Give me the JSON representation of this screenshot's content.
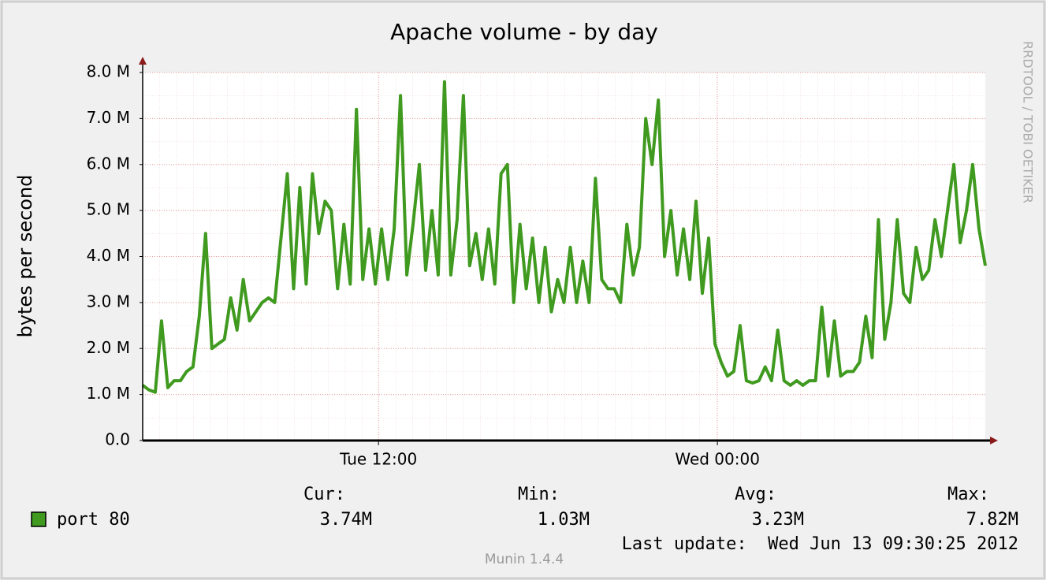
{
  "chart_data": {
    "type": "line",
    "title": "Apache volume - by day",
    "ylabel": "bytes per second",
    "side_text": "RRDTOOL / TOBI OETIKER",
    "ylim": [
      0,
      8
    ],
    "yticks": [
      {
        "value": 0,
        "label": "0.0"
      },
      {
        "value": 1,
        "label": "1.0 M"
      },
      {
        "value": 2,
        "label": "2.0 M"
      },
      {
        "value": 3,
        "label": "3.0 M"
      },
      {
        "value": 4,
        "label": "4.0 M"
      },
      {
        "value": 5,
        "label": "5.0 M"
      },
      {
        "value": 6,
        "label": "6.0 M"
      },
      {
        "value": 7,
        "label": "7.0 M"
      },
      {
        "value": 8,
        "label": "8.0 M"
      }
    ],
    "xlim": [
      0,
      134
    ],
    "xticks": [
      {
        "value": 37.5,
        "label": "Tue 12:00"
      },
      {
        "value": 91.4,
        "label": "Wed 00:00"
      }
    ],
    "grid": true,
    "series": [
      {
        "name": "port 80",
        "color": "#3f9a1f",
        "values": [
          1.2,
          1.1,
          1.05,
          2.6,
          1.15,
          1.3,
          1.3,
          1.5,
          1.6,
          2.7,
          4.5,
          2.0,
          2.1,
          2.2,
          3.1,
          2.4,
          3.5,
          2.6,
          2.8,
          3.0,
          3.1,
          3.0,
          4.4,
          5.8,
          3.3,
          5.5,
          3.4,
          5.8,
          4.5,
          5.2,
          5.0,
          3.3,
          4.7,
          3.4,
          7.2,
          3.5,
          4.6,
          3.4,
          4.6,
          3.5,
          4.6,
          7.5,
          3.6,
          4.7,
          6.0,
          3.7,
          5.0,
          3.6,
          7.8,
          3.6,
          4.8,
          7.5,
          3.8,
          4.5,
          3.5,
          4.6,
          3.4,
          5.8,
          6.0,
          3.0,
          4.7,
          3.3,
          4.4,
          3.0,
          4.2,
          2.8,
          3.5,
          3.0,
          4.2,
          3.0,
          3.9,
          3.0,
          5.7,
          3.5,
          3.3,
          3.3,
          3.0,
          4.7,
          3.6,
          4.2,
          7.0,
          6.0,
          7.4,
          4.0,
          5.0,
          3.6,
          4.6,
          3.5,
          5.2,
          3.2,
          4.4,
          2.1,
          1.7,
          1.4,
          1.5,
          2.5,
          1.3,
          1.25,
          1.3,
          1.6,
          1.3,
          2.4,
          1.3,
          1.2,
          1.3,
          1.2,
          1.3,
          1.3,
          2.9,
          1.4,
          2.6,
          1.4,
          1.5,
          1.5,
          1.7,
          2.7,
          1.8,
          4.8,
          2.2,
          3.0,
          4.8,
          3.2,
          3.0,
          4.2,
          3.5,
          3.7,
          4.8,
          4.0,
          5.0,
          6.0,
          4.3,
          5.0,
          6.0,
          4.6,
          3.8
        ]
      }
    ],
    "legend": {
      "headers": [
        "Cur:",
        "Min:",
        "Avg:",
        "Max:"
      ],
      "values": [
        "3.74M",
        "1.03M",
        "3.23M",
        "7.82M"
      ]
    },
    "last_update": "Last update:  Wed Jun 13 09:30:25 2012",
    "footer": "Munin 1.4.4"
  }
}
